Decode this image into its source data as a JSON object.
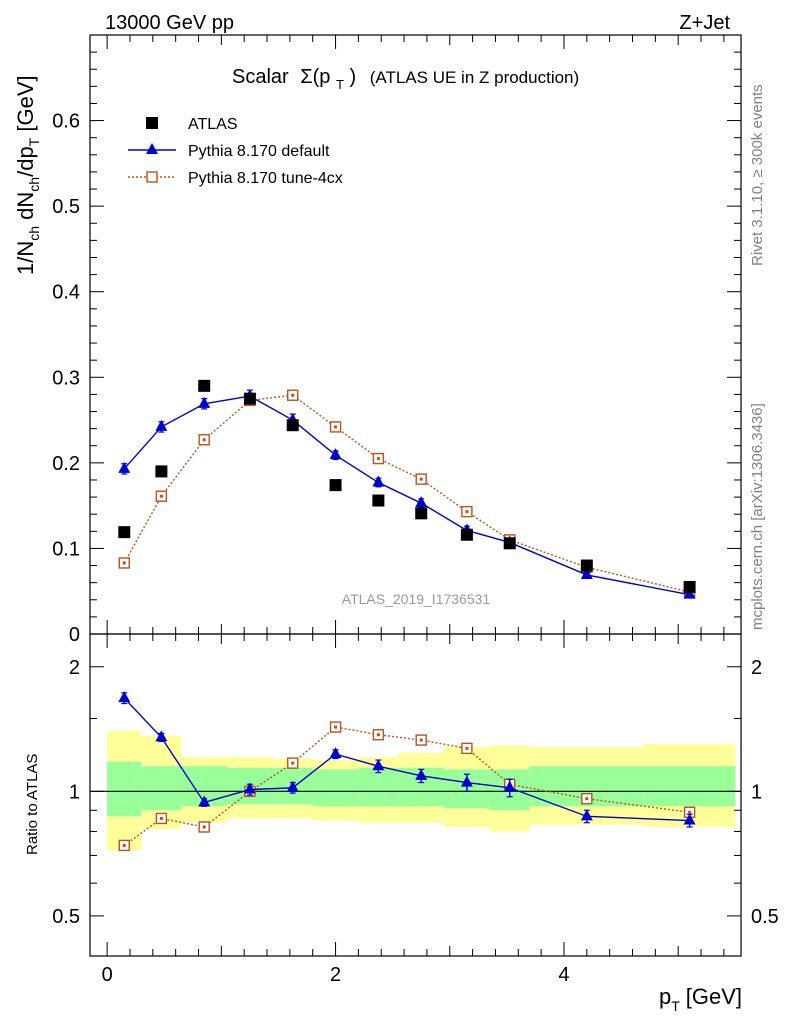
{
  "header": {
    "left_label": "13000 GeV pp",
    "right_label": "Z+Jet"
  },
  "side_text": {
    "rivet": "Rivet 3.1.10, ≥ 300k events",
    "mcplots": "mcplots.cern.ch [arXiv:1306.3436]"
  },
  "analysis_id": "ATLAS_2019_I1736531",
  "colors": {
    "data": "#000000",
    "default": "#0000cc",
    "tune": "#b5541c",
    "band_inner": "#99ff99",
    "band_outer": "#ffff99"
  },
  "chart_data": [
    {
      "type": "scatter",
      "title": "Scalar Σ(pT) (ATLAS UE in Z production)",
      "title_main": "Scalar",
      "title_sigma": "Σ(p",
      "title_sub": "T",
      "title_close": ")",
      "title_rest": "(ATLAS UE in Z production)",
      "ylabel": "1/Nch dNch/dpT [GeV]",
      "ylabel_parts": [
        "1/N",
        "ch",
        " dN",
        "ch",
        "/dp",
        "T",
        " [GeV]"
      ],
      "xlim": [
        -0.15,
        5.55
      ],
      "ylim": [
        0,
        0.7
      ],
      "yticks": [
        0,
        0.1,
        0.2,
        0.3,
        0.4,
        0.5,
        0.6
      ],
      "ytick_labels": [
        "0",
        "0.1",
        "0.2",
        "0.3",
        "0.4",
        "0.5",
        "0.6"
      ],
      "x": [
        0.15,
        0.475,
        0.85,
        1.25,
        1.625,
        2.0,
        2.375,
        2.75,
        3.15,
        3.525,
        4.2,
        5.1
      ],
      "series": [
        {
          "name": "ATLAS",
          "marker": "square",
          "values": [
            0.119,
            0.19,
            0.29,
            0.275,
            0.244,
            0.174,
            0.156,
            0.141,
            0.116,
            0.106,
            0.08,
            0.055
          ]
        },
        {
          "name": "Pythia 8.170 default",
          "marker": "triangle",
          "values": [
            0.193,
            0.242,
            0.269,
            0.278,
            0.25,
            0.209,
            0.177,
            0.153,
            0.121,
            0.107,
            0.069,
            0.046
          ],
          "errors": [
            0.006,
            0.006,
            0.006,
            0.007,
            0.007,
            0.005,
            0.005,
            0.005,
            0.005,
            0.004,
            0.003,
            0.003
          ]
        },
        {
          "name": "Pythia 8.170 tune-4cx",
          "marker": "open-square",
          "values": [
            0.083,
            0.161,
            0.227,
            0.273,
            0.279,
            0.242,
            0.205,
            0.181,
            0.143,
            0.11,
            0.078,
            0.049
          ]
        }
      ]
    },
    {
      "type": "scatter",
      "title": "Ratio to ATLAS",
      "ylabel": "Ratio to ATLAS",
      "xlabel": "pT [GeV]",
      "xlabel_main": "p",
      "xlabel_sub": "T",
      "xlabel_unit": "[GeV]",
      "xlim": [
        -0.15,
        5.55
      ],
      "ylim": [
        0.4,
        2.4
      ],
      "yscale": "log",
      "yticks": [
        0.5,
        1,
        2
      ],
      "ytick_labels": [
        "0.5",
        "1",
        "2"
      ],
      "xticks": [
        0,
        2,
        4
      ],
      "xtick_labels": [
        "0",
        "2",
        "4"
      ],
      "x": [
        0.15,
        0.475,
        0.85,
        1.25,
        1.625,
        2.0,
        2.375,
        2.75,
        3.15,
        3.525,
        4.2,
        5.1
      ],
      "bins": [
        [
          0,
          0.3
        ],
        [
          0.3,
          0.65
        ],
        [
          0.65,
          1.05
        ],
        [
          1.05,
          1.45
        ],
        [
          1.45,
          1.8
        ],
        [
          1.8,
          2.2
        ],
        [
          2.2,
          2.55
        ],
        [
          2.55,
          2.95
        ],
        [
          2.95,
          3.35
        ],
        [
          3.35,
          3.7
        ],
        [
          3.7,
          4.7
        ],
        [
          4.7,
          5.5
        ]
      ],
      "band_inner": [
        [
          0.87,
          1.18
        ],
        [
          0.9,
          1.15
        ],
        [
          0.92,
          1.15
        ],
        [
          0.93,
          1.14
        ],
        [
          0.93,
          1.14
        ],
        [
          0.92,
          1.13
        ],
        [
          0.92,
          1.14
        ],
        [
          0.92,
          1.14
        ],
        [
          0.91,
          1.13
        ],
        [
          0.9,
          1.13
        ],
        [
          0.92,
          1.15
        ],
        [
          0.92,
          1.15
        ]
      ],
      "band_outer": [
        [
          0.72,
          1.4
        ],
        [
          0.81,
          1.36
        ],
        [
          0.84,
          1.21
        ],
        [
          0.86,
          1.21
        ],
        [
          0.86,
          1.2
        ],
        [
          0.85,
          1.19
        ],
        [
          0.84,
          1.21
        ],
        [
          0.84,
          1.24
        ],
        [
          0.82,
          1.28
        ],
        [
          0.8,
          1.29
        ],
        [
          0.83,
          1.28
        ],
        [
          0.82,
          1.3
        ]
      ],
      "series": [
        {
          "name": "Pythia 8.170 default",
          "marker": "triangle",
          "values": [
            1.68,
            1.35,
            0.94,
            1.01,
            1.02,
            1.23,
            1.15,
            1.09,
            1.05,
            1.02,
            0.87,
            0.85
          ],
          "errors": [
            0.05,
            0.03,
            0.02,
            0.03,
            0.03,
            0.03,
            0.04,
            0.04,
            0.05,
            0.05,
            0.03,
            0.03
          ]
        },
        {
          "name": "Pythia 8.170 tune-4cx",
          "marker": "open-square",
          "values": [
            0.74,
            0.86,
            0.82,
            1.0,
            1.17,
            1.43,
            1.37,
            1.33,
            1.27,
            1.04,
            0.96,
            0.89
          ]
        }
      ]
    }
  ]
}
